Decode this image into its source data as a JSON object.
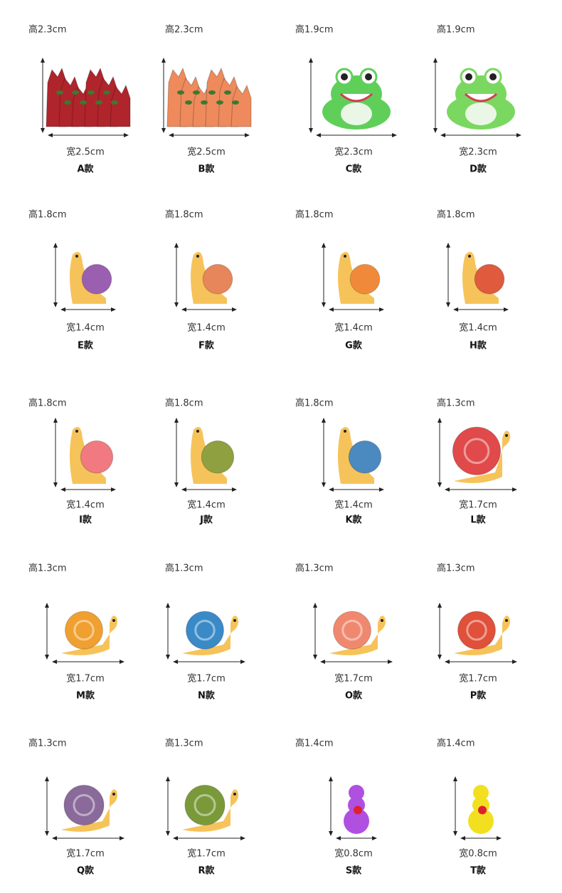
{
  "items": [
    {
      "height": "高2.3cm",
      "width": "宽2.5cm",
      "name": "A款"
    },
    {
      "height": "高2.3cm",
      "width": "宽2.5cm",
      "name": "B款"
    },
    {
      "height": "高1.9cm",
      "width": "宽2.3cm",
      "name": "C款"
    },
    {
      "height": "高1.9cm",
      "width": "宽2.3cm",
      "name": "D款"
    },
    {
      "height": "高1.8cm",
      "width": "宽1.4cm",
      "name": "E款"
    },
    {
      "height": "高1.8cm",
      "width": "宽1.4cm",
      "name": "F款"
    },
    {
      "height": "高1.8cm",
      "width": "宽1.4cm",
      "name": "G款"
    },
    {
      "height": "高1.8cm",
      "width": "宽1.4cm",
      "name": "H款"
    },
    {
      "height": "高1.8cm",
      "width": "宽1.4cm",
      "name": "I款"
    },
    {
      "height": "高1.8cm",
      "width": "宽1.4cm",
      "name": "J款"
    },
    {
      "height": "高1.8cm",
      "width": "宽1.4cm",
      "name": "K款"
    },
    {
      "height": "高1.3cm",
      "width": "宽1.7cm",
      "name": "L款"
    },
    {
      "height": "高1.3cm",
      "width": "宽1.7cm",
      "name": "M款"
    },
    {
      "height": "高1.3cm",
      "width": "宽1.7cm",
      "name": "N款"
    },
    {
      "height": "高1.3cm",
      "width": "宽1.7cm",
      "name": "O款"
    },
    {
      "height": "高1.3cm",
      "width": "宽1.7cm",
      "name": "P款"
    },
    {
      "height": "高1.3cm",
      "width": "宽1.7cm",
      "name": "Q款"
    },
    {
      "height": "高1.3cm",
      "width": "宽1.7cm",
      "name": "R款"
    },
    {
      "height": "高1.4cm",
      "width": "宽0.8cm",
      "name": "S款"
    },
    {
      "height": "高1.4cm",
      "width": "宽0.8cm",
      "name": "T款"
    }
  ]
}
